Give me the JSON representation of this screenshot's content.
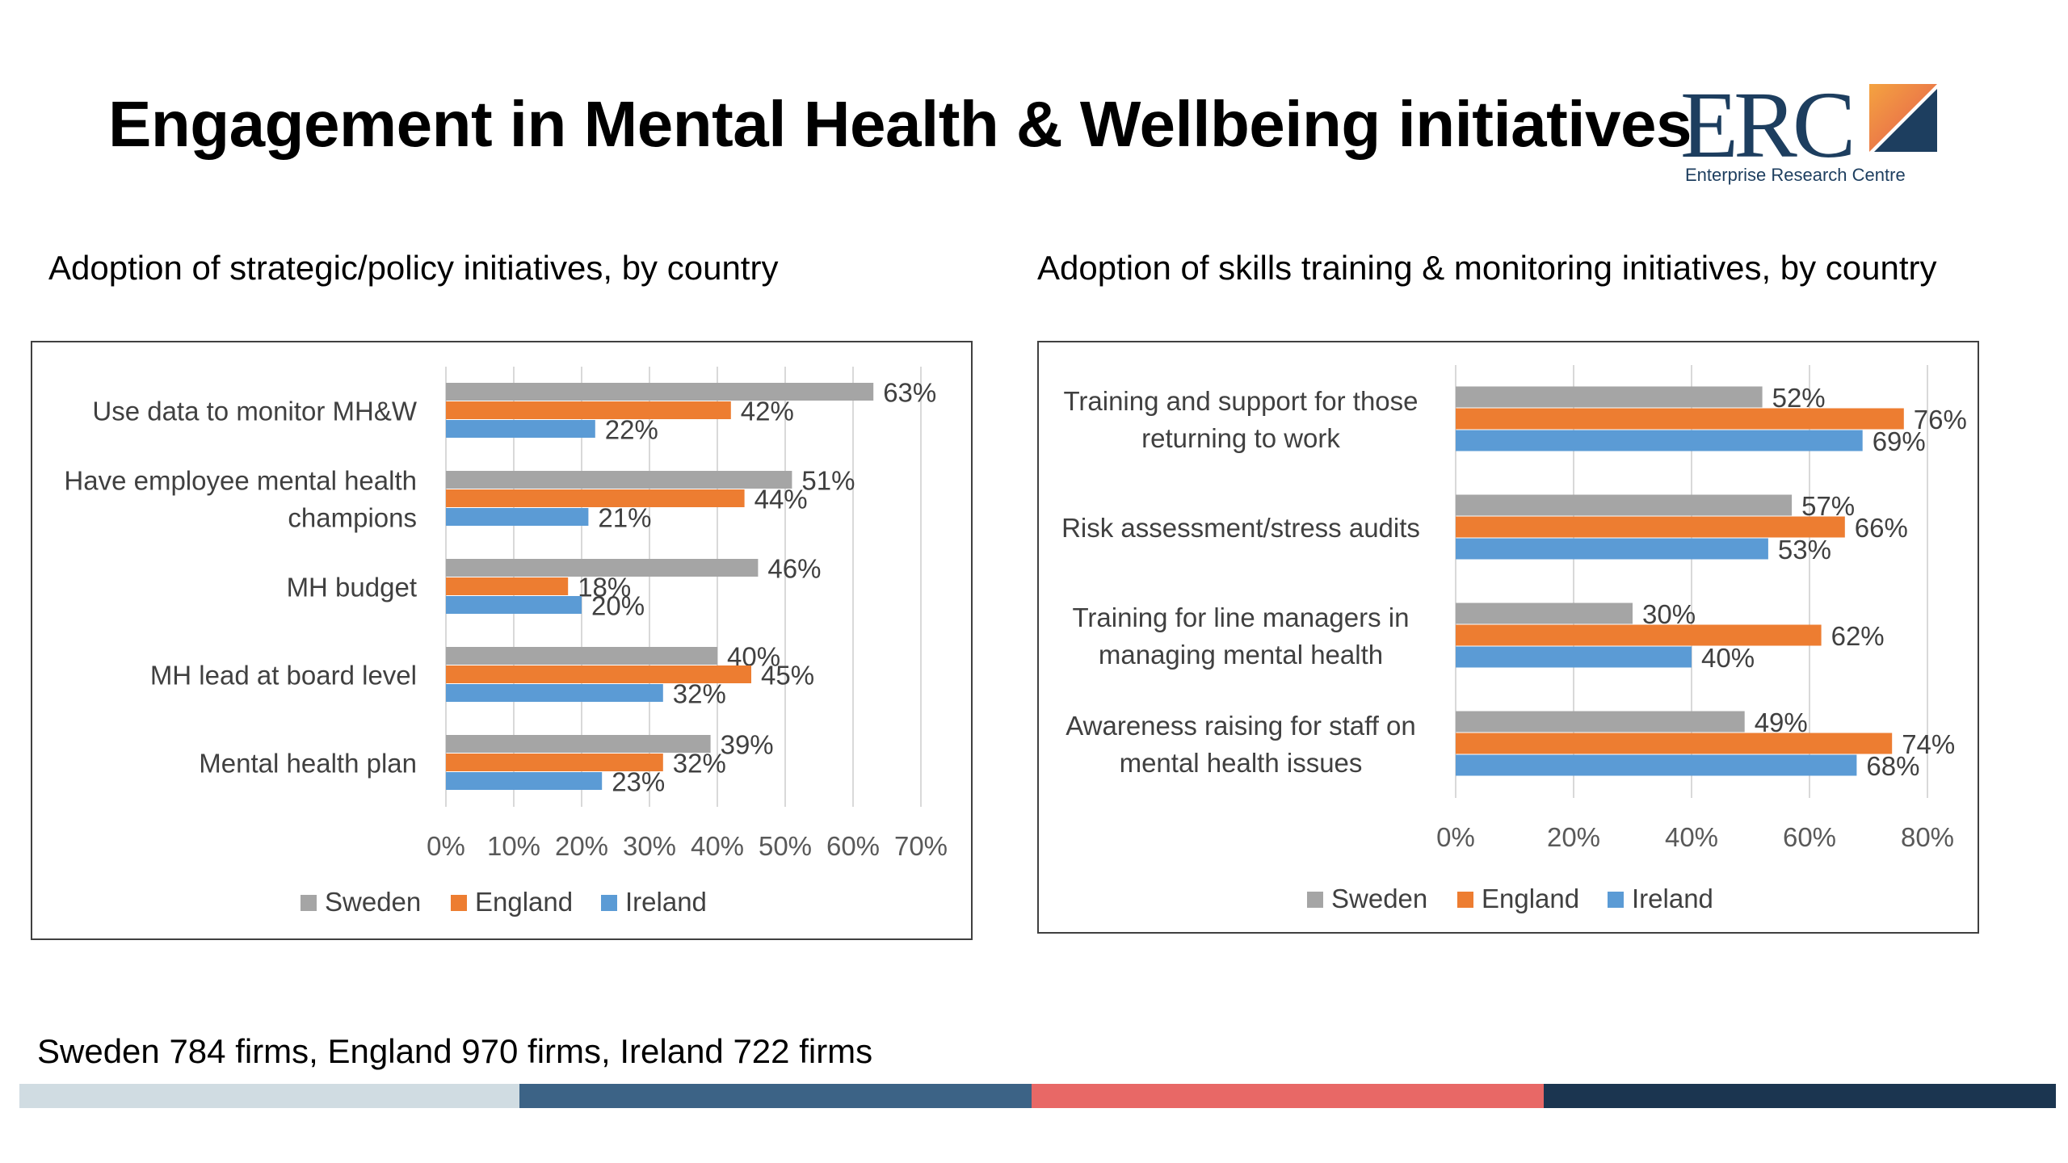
{
  "title": "Engagement in Mental Health & Wellbeing initiatives",
  "logo": {
    "text": "ERC",
    "subtitle": "Enterprise Research Centre"
  },
  "left_subtitle": "Adoption of strategic/policy initiatives, by country",
  "right_subtitle": "Adoption of skills training & monitoring initiatives, by country",
  "footer_note": "Sweden 784 firms, England 970 firms, Ireland 722 firms",
  "colors": {
    "sweden": "#a5a5a5",
    "england": "#ed7d31",
    "ireland": "#5b9bd5",
    "stripe1": "#d0dce2",
    "stripe2": "#3c6386",
    "stripe3": "#e86866",
    "stripe4": "#1b3550",
    "logo_orange": "#ef8a3c",
    "logo_red": "#e4584f",
    "logo_navy": "#1d3e5f"
  },
  "chart_data": [
    {
      "type": "bar",
      "orientation": "horizontal",
      "title": "Adoption of strategic/policy initiatives, by country",
      "categories": [
        [
          "Use data to monitor MH&W"
        ],
        [
          "Have employee mental health",
          "champions"
        ],
        [
          "MH budget"
        ],
        [
          "MH lead at board level"
        ],
        [
          "Mental health plan"
        ]
      ],
      "series": [
        {
          "name": "Sweden",
          "values": [
            63,
            51,
            46,
            40,
            39
          ]
        },
        {
          "name": "England",
          "values": [
            42,
            44,
            18,
            45,
            32
          ]
        },
        {
          "name": "Ireland",
          "values": [
            22,
            21,
            20,
            32,
            23
          ]
        }
      ],
      "xlim": [
        0,
        70
      ],
      "xticks": [
        0,
        10,
        20,
        30,
        40,
        50,
        60,
        70
      ],
      "tick_format": "{v}%",
      "label_format": "{v}%",
      "grid": true,
      "legend": [
        "Sweden",
        "England",
        "Ireland"
      ],
      "legend_position": "bottom"
    },
    {
      "type": "bar",
      "orientation": "horizontal",
      "title": "Adoption of skills training & monitoring initiatives, by country",
      "categories": [
        [
          "Training and support for those",
          "returning to work"
        ],
        [
          "Risk assessment/stress audits"
        ],
        [
          "Training for line managers in",
          "managing mental health"
        ],
        [
          "Awareness raising for staff on",
          "mental health issues"
        ]
      ],
      "series": [
        {
          "name": "Sweden",
          "values": [
            52,
            57,
            30,
            49
          ]
        },
        {
          "name": "England",
          "values": [
            76,
            66,
            62,
            74
          ]
        },
        {
          "name": "Ireland",
          "values": [
            69,
            53,
            40,
            68
          ]
        }
      ],
      "xlim": [
        0,
        80
      ],
      "xticks": [
        0,
        20,
        40,
        60,
        80
      ],
      "tick_format": "{v}%",
      "label_format": "{v}%",
      "grid": true,
      "legend": [
        "Sweden",
        "England",
        "Ireland"
      ],
      "legend_position": "bottom"
    }
  ]
}
